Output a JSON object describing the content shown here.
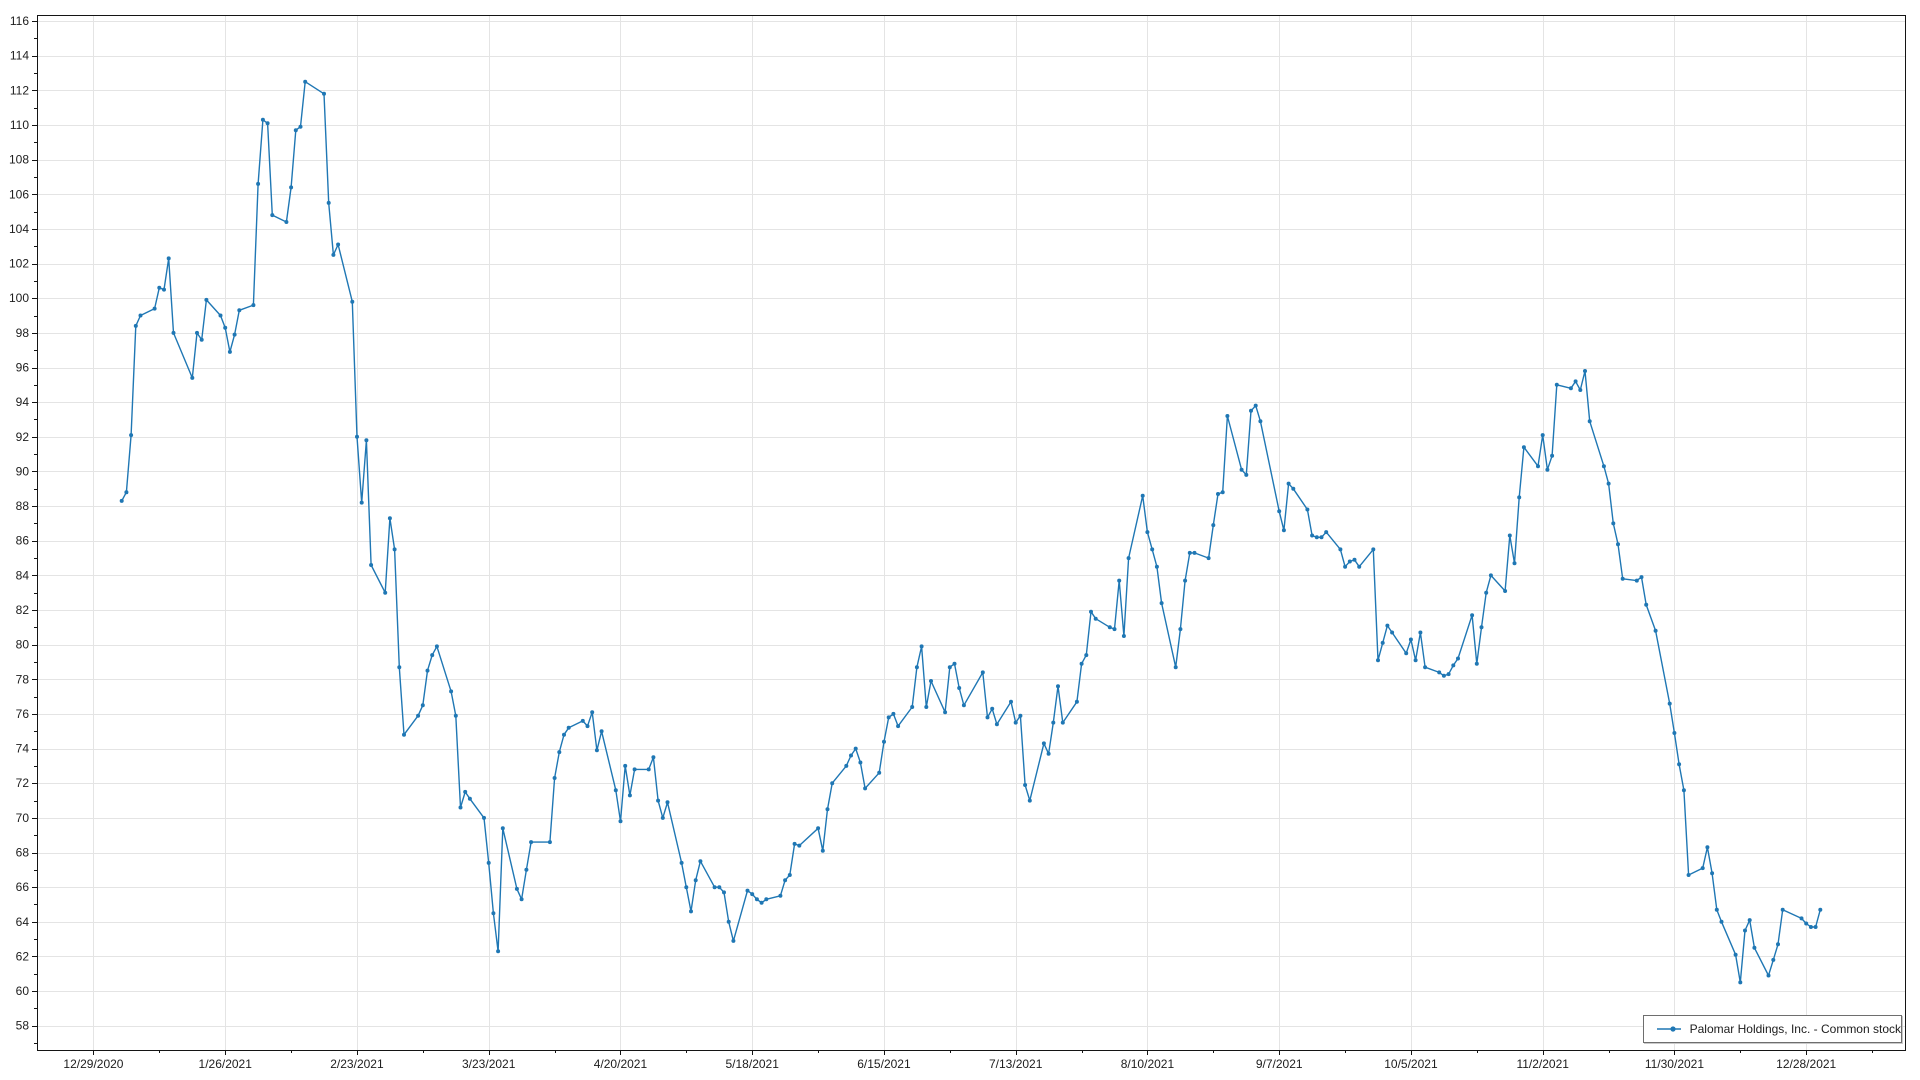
{
  "chart_data": {
    "type": "line",
    "title": "",
    "xlabel": "",
    "ylabel": "",
    "grid": true,
    "marker": "circle",
    "legend_position": "bottom-right",
    "background_color": "#ffffff",
    "gridline_color": "#e4e4e4",
    "frame_color": "#141414",
    "tick_label_color": "#1d1d1d",
    "y_axis": {
      "min": 56.6,
      "max": 116.35,
      "label_min": 58,
      "label_max": 116,
      "major_step": 2,
      "minor_step": 1
    },
    "x_axis": {
      "start": "2020-12-17",
      "end": "2022-01-18",
      "major_tick_dates": [
        "2020-12-29",
        "2021-01-26",
        "2021-02-23",
        "2021-03-23",
        "2021-04-20",
        "2021-05-18",
        "2021-06-15",
        "2021-07-13",
        "2021-08-10",
        "2021-09-07",
        "2021-10-05",
        "2021-11-02",
        "2021-11-30",
        "2021-12-28"
      ],
      "tick_labels": [
        "12/29/2020",
        "1/26/2021",
        "2/23/2021",
        "3/23/2021",
        "4/20/2021",
        "5/18/2021",
        "6/15/2021",
        "7/13/2021",
        "8/10/2021",
        "9/7/2021",
        "10/5/2021",
        "11/2/2021",
        "11/30/2021",
        "12/28/2021"
      ],
      "minor_interval_days": 14
    },
    "series": [
      {
        "name": "Palomar Holdings, Inc. - Common stock",
        "color": "#1f77b4",
        "points": [
          [
            "2021-01-04",
            88.3
          ],
          [
            "2021-01-05",
            88.8
          ],
          [
            "2021-01-06",
            92.1
          ],
          [
            "2021-01-07",
            98.4
          ],
          [
            "2021-01-08",
            99.0
          ],
          [
            "2021-01-11",
            99.4
          ],
          [
            "2021-01-12",
            100.6
          ],
          [
            "2021-01-13",
            100.5
          ],
          [
            "2021-01-14",
            102.3
          ],
          [
            "2021-01-15",
            98.0
          ],
          [
            "2021-01-19",
            95.4
          ],
          [
            "2021-01-20",
            98.0
          ],
          [
            "2021-01-21",
            97.6
          ],
          [
            "2021-01-22",
            99.9
          ],
          [
            "2021-01-25",
            99.0
          ],
          [
            "2021-01-26",
            98.3
          ],
          [
            "2021-01-27",
            96.9
          ],
          [
            "2021-01-28",
            97.9
          ],
          [
            "2021-01-29",
            99.3
          ],
          [
            "2021-02-01",
            99.6
          ],
          [
            "2021-02-02",
            106.6
          ],
          [
            "2021-02-03",
            110.3
          ],
          [
            "2021-02-04",
            110.1
          ],
          [
            "2021-02-05",
            104.8
          ],
          [
            "2021-02-08",
            104.4
          ],
          [
            "2021-02-09",
            106.4
          ],
          [
            "2021-02-10",
            109.7
          ],
          [
            "2021-02-11",
            109.9
          ],
          [
            "2021-02-12",
            112.5
          ],
          [
            "2021-02-16",
            111.8
          ],
          [
            "2021-02-17",
            105.5
          ],
          [
            "2021-02-18",
            102.5
          ],
          [
            "2021-02-19",
            103.1
          ],
          [
            "2021-02-22",
            99.8
          ],
          [
            "2021-02-23",
            92.0
          ],
          [
            "2021-02-24",
            88.2
          ],
          [
            "2021-02-25",
            91.8
          ],
          [
            "2021-02-26",
            84.6
          ],
          [
            "2021-03-01",
            83.0
          ],
          [
            "2021-03-02",
            87.3
          ],
          [
            "2021-03-03",
            85.5
          ],
          [
            "2021-03-04",
            78.7
          ],
          [
            "2021-03-05",
            74.8
          ],
          [
            "2021-03-08",
            75.9
          ],
          [
            "2021-03-09",
            76.5
          ],
          [
            "2021-03-10",
            78.5
          ],
          [
            "2021-03-11",
            79.4
          ],
          [
            "2021-03-12",
            79.9
          ],
          [
            "2021-03-15",
            77.3
          ],
          [
            "2021-03-16",
            75.9
          ],
          [
            "2021-03-17",
            70.6
          ],
          [
            "2021-03-18",
            71.5
          ],
          [
            "2021-03-19",
            71.1
          ],
          [
            "2021-03-22",
            70.0
          ],
          [
            "2021-03-23",
            67.4
          ],
          [
            "2021-03-24",
            64.5
          ],
          [
            "2021-03-25",
            62.3
          ],
          [
            "2021-03-26",
            69.4
          ],
          [
            "2021-03-29",
            65.9
          ],
          [
            "2021-03-30",
            65.3
          ],
          [
            "2021-03-31",
            67.0
          ],
          [
            "2021-04-01",
            68.6
          ],
          [
            "2021-04-05",
            68.6
          ],
          [
            "2021-04-06",
            72.3
          ],
          [
            "2021-04-07",
            73.8
          ],
          [
            "2021-04-08",
            74.8
          ],
          [
            "2021-04-09",
            75.2
          ],
          [
            "2021-04-12",
            75.6
          ],
          [
            "2021-04-13",
            75.3
          ],
          [
            "2021-04-14",
            76.1
          ],
          [
            "2021-04-15",
            73.9
          ],
          [
            "2021-04-16",
            75.0
          ],
          [
            "2021-04-19",
            71.6
          ],
          [
            "2021-04-20",
            69.8
          ],
          [
            "2021-04-21",
            73.0
          ],
          [
            "2021-04-22",
            71.3
          ],
          [
            "2021-04-23",
            72.8
          ],
          [
            "2021-04-26",
            72.8
          ],
          [
            "2021-04-27",
            73.5
          ],
          [
            "2021-04-28",
            71.0
          ],
          [
            "2021-04-29",
            70.0
          ],
          [
            "2021-04-30",
            70.9
          ],
          [
            "2021-05-03",
            67.4
          ],
          [
            "2021-05-04",
            66.0
          ],
          [
            "2021-05-05",
            64.6
          ],
          [
            "2021-05-06",
            66.4
          ],
          [
            "2021-05-07",
            67.5
          ],
          [
            "2021-05-10",
            66.0
          ],
          [
            "2021-05-11",
            66.0
          ],
          [
            "2021-05-12",
            65.7
          ],
          [
            "2021-05-13",
            64.0
          ],
          [
            "2021-05-14",
            62.9
          ],
          [
            "2021-05-17",
            65.8
          ],
          [
            "2021-05-18",
            65.6
          ],
          [
            "2021-05-19",
            65.3
          ],
          [
            "2021-05-20",
            65.1
          ],
          [
            "2021-05-21",
            65.3
          ],
          [
            "2021-05-24",
            65.5
          ],
          [
            "2021-05-25",
            66.4
          ],
          [
            "2021-05-26",
            66.7
          ],
          [
            "2021-05-27",
            68.5
          ],
          [
            "2021-05-28",
            68.4
          ],
          [
            "2021-06-01",
            69.4
          ],
          [
            "2021-06-02",
            68.1
          ],
          [
            "2021-06-03",
            70.5
          ],
          [
            "2021-06-04",
            72.0
          ],
          [
            "2021-06-07",
            73.0
          ],
          [
            "2021-06-08",
            73.6
          ],
          [
            "2021-06-09",
            74.0
          ],
          [
            "2021-06-10",
            73.2
          ],
          [
            "2021-06-11",
            71.7
          ],
          [
            "2021-06-14",
            72.6
          ],
          [
            "2021-06-15",
            74.4
          ],
          [
            "2021-06-16",
            75.8
          ],
          [
            "2021-06-17",
            76.0
          ],
          [
            "2021-06-18",
            75.3
          ],
          [
            "2021-06-21",
            76.4
          ],
          [
            "2021-06-22",
            78.7
          ],
          [
            "2021-06-23",
            79.9
          ],
          [
            "2021-06-24",
            76.4
          ],
          [
            "2021-06-25",
            77.9
          ],
          [
            "2021-06-28",
            76.1
          ],
          [
            "2021-06-29",
            78.7
          ],
          [
            "2021-06-30",
            78.9
          ],
          [
            "2021-07-01",
            77.5
          ],
          [
            "2021-07-02",
            76.5
          ],
          [
            "2021-07-06",
            78.4
          ],
          [
            "2021-07-07",
            75.8
          ],
          [
            "2021-07-08",
            76.3
          ],
          [
            "2021-07-09",
            75.4
          ],
          [
            "2021-07-12",
            76.7
          ],
          [
            "2021-07-13",
            75.5
          ],
          [
            "2021-07-14",
            75.9
          ],
          [
            "2021-07-15",
            71.9
          ],
          [
            "2021-07-16",
            71.0
          ],
          [
            "2021-07-19",
            74.3
          ],
          [
            "2021-07-20",
            73.7
          ],
          [
            "2021-07-21",
            75.5
          ],
          [
            "2021-07-22",
            77.6
          ],
          [
            "2021-07-23",
            75.5
          ],
          [
            "2021-07-26",
            76.7
          ],
          [
            "2021-07-27",
            78.9
          ],
          [
            "2021-07-28",
            79.4
          ],
          [
            "2021-07-29",
            81.9
          ],
          [
            "2021-07-30",
            81.5
          ],
          [
            "2021-08-02",
            81.0
          ],
          [
            "2021-08-03",
            80.9
          ],
          [
            "2021-08-04",
            83.7
          ],
          [
            "2021-08-05",
            80.5
          ],
          [
            "2021-08-06",
            85.0
          ],
          [
            "2021-08-09",
            88.6
          ],
          [
            "2021-08-10",
            86.5
          ],
          [
            "2021-08-11",
            85.5
          ],
          [
            "2021-08-12",
            84.5
          ],
          [
            "2021-08-13",
            82.4
          ],
          [
            "2021-08-16",
            78.7
          ],
          [
            "2021-08-17",
            80.9
          ],
          [
            "2021-08-18",
            83.7
          ],
          [
            "2021-08-19",
            85.3
          ],
          [
            "2021-08-20",
            85.3
          ],
          [
            "2021-08-23",
            85.0
          ],
          [
            "2021-08-24",
            86.9
          ],
          [
            "2021-08-25",
            88.7
          ],
          [
            "2021-08-26",
            88.8
          ],
          [
            "2021-08-27",
            93.2
          ],
          [
            "2021-08-30",
            90.1
          ],
          [
            "2021-08-31",
            89.8
          ],
          [
            "2021-09-01",
            93.5
          ],
          [
            "2021-09-02",
            93.8
          ],
          [
            "2021-09-03",
            92.9
          ],
          [
            "2021-09-07",
            87.7
          ],
          [
            "2021-09-08",
            86.6
          ],
          [
            "2021-09-09",
            89.3
          ],
          [
            "2021-09-10",
            89.0
          ],
          [
            "2021-09-13",
            87.8
          ],
          [
            "2021-09-14",
            86.3
          ],
          [
            "2021-09-15",
            86.2
          ],
          [
            "2021-09-16",
            86.2
          ],
          [
            "2021-09-17",
            86.5
          ],
          [
            "2021-09-20",
            85.5
          ],
          [
            "2021-09-21",
            84.5
          ],
          [
            "2021-09-22",
            84.8
          ],
          [
            "2021-09-23",
            84.9
          ],
          [
            "2021-09-24",
            84.5
          ],
          [
            "2021-09-27",
            85.5
          ],
          [
            "2021-09-28",
            79.1
          ],
          [
            "2021-09-29",
            80.1
          ],
          [
            "2021-09-30",
            81.1
          ],
          [
            "2021-10-01",
            80.7
          ],
          [
            "2021-10-04",
            79.5
          ],
          [
            "2021-10-05",
            80.3
          ],
          [
            "2021-10-06",
            79.1
          ],
          [
            "2021-10-07",
            80.7
          ],
          [
            "2021-10-08",
            78.7
          ],
          [
            "2021-10-11",
            78.4
          ],
          [
            "2021-10-12",
            78.2
          ],
          [
            "2021-10-13",
            78.3
          ],
          [
            "2021-10-14",
            78.8
          ],
          [
            "2021-10-15",
            79.2
          ],
          [
            "2021-10-18",
            81.7
          ],
          [
            "2021-10-19",
            78.9
          ],
          [
            "2021-10-20",
            81.0
          ],
          [
            "2021-10-21",
            83.0
          ],
          [
            "2021-10-22",
            84.0
          ],
          [
            "2021-10-25",
            83.1
          ],
          [
            "2021-10-26",
            86.3
          ],
          [
            "2021-10-27",
            84.7
          ],
          [
            "2021-10-28",
            88.5
          ],
          [
            "2021-10-29",
            91.4
          ],
          [
            "2021-11-01",
            90.3
          ],
          [
            "2021-11-02",
            92.1
          ],
          [
            "2021-11-03",
            90.1
          ],
          [
            "2021-11-04",
            90.9
          ],
          [
            "2021-11-05",
            95.0
          ],
          [
            "2021-11-08",
            94.8
          ],
          [
            "2021-11-09",
            95.2
          ],
          [
            "2021-11-10",
            94.7
          ],
          [
            "2021-11-11",
            95.8
          ],
          [
            "2021-11-12",
            92.9
          ],
          [
            "2021-11-15",
            90.3
          ],
          [
            "2021-11-16",
            89.3
          ],
          [
            "2021-11-17",
            87.0
          ],
          [
            "2021-11-18",
            85.8
          ],
          [
            "2021-11-19",
            83.8
          ],
          [
            "2021-11-22",
            83.7
          ],
          [
            "2021-11-23",
            83.9
          ],
          [
            "2021-11-24",
            82.3
          ],
          [
            "2021-11-26",
            80.8
          ],
          [
            "2021-11-29",
            76.6
          ],
          [
            "2021-11-30",
            74.9
          ],
          [
            "2021-12-01",
            73.1
          ],
          [
            "2021-12-02",
            71.6
          ],
          [
            "2021-12-03",
            66.7
          ],
          [
            "2021-12-06",
            67.1
          ],
          [
            "2021-12-07",
            68.3
          ],
          [
            "2021-12-08",
            66.8
          ],
          [
            "2021-12-09",
            64.7
          ],
          [
            "2021-12-10",
            64.0
          ],
          [
            "2021-12-13",
            62.1
          ],
          [
            "2021-12-14",
            60.5
          ],
          [
            "2021-12-15",
            63.5
          ],
          [
            "2021-12-16",
            64.1
          ],
          [
            "2021-12-17",
            62.5
          ],
          [
            "2021-12-20",
            60.9
          ],
          [
            "2021-12-21",
            61.8
          ],
          [
            "2021-12-22",
            62.7
          ],
          [
            "2021-12-23",
            64.7
          ],
          [
            "2021-12-27",
            64.2
          ],
          [
            "2021-12-28",
            63.9
          ],
          [
            "2021-12-29",
            63.7
          ],
          [
            "2021-12-30",
            63.7
          ],
          [
            "2021-12-31",
            64.7
          ]
        ]
      }
    ]
  },
  "legend": {
    "label": "Palomar Holdings, Inc. - Common stock"
  }
}
